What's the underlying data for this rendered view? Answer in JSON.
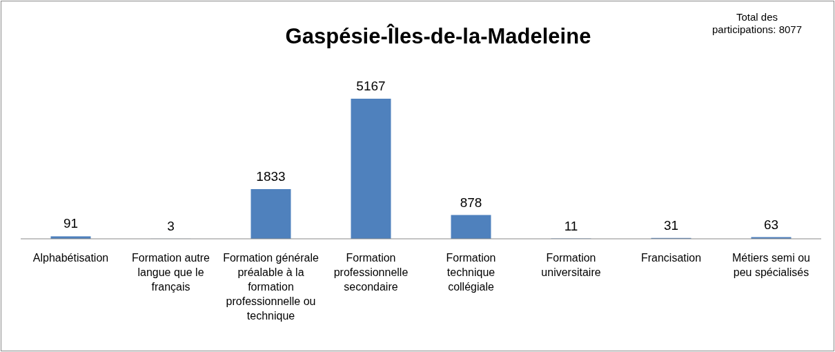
{
  "chart_data": {
    "type": "bar",
    "title": "Gaspésie-Îles-de-la-Madeleine",
    "annotations": [
      "Total des participations: 8077"
    ],
    "categories": [
      "Alphabétisation",
      "Formation autre langue que le français",
      "Formation générale préalable à la formation professionnelle ou technique",
      "Formation professionnelle secondaire",
      "Formation technique collégiale",
      "Formation universitaire",
      "Francisation",
      "Métiers semi ou peu spécialisés"
    ],
    "values": [
      91,
      3,
      1833,
      5167,
      878,
      11,
      31,
      63
    ],
    "color": "#4f81bd",
    "data_labels": true
  }
}
